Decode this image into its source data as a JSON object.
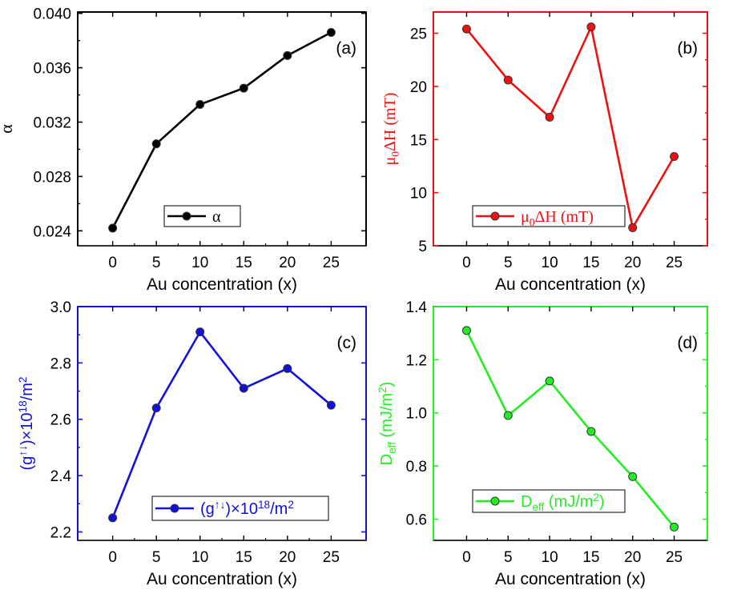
{
  "chart_data": [
    {
      "id": "a",
      "type": "line",
      "panel_label": "(a)",
      "color": "#000000",
      "xlabel": "Au concentration (x)",
      "ylabel": "α",
      "x": [
        0,
        5,
        10,
        15,
        20,
        25
      ],
      "xticks": [
        "0",
        "5",
        "10",
        "15",
        "20",
        "25"
      ],
      "xlim": [
        -4,
        29
      ],
      "ylim": [
        0.0229,
        0.0401
      ],
      "yticks": [
        "0.024",
        "0.028",
        "0.032",
        "0.036",
        "0.040"
      ],
      "ytick_values": [
        0.024,
        0.028,
        0.032,
        0.036,
        0.04
      ],
      "series": [
        {
          "name": "α",
          "values": [
            0.0242,
            0.0304,
            0.0333,
            0.0345,
            0.0369,
            0.0386
          ]
        }
      ],
      "legend": {
        "label": "α",
        "placement": "lower-center"
      }
    },
    {
      "id": "b",
      "type": "line",
      "panel_label": "(b)",
      "color": "#ee1111",
      "xlabel": "Au concentration (x)",
      "ylabel": "μ0ΔH (mT)",
      "x": [
        0,
        5,
        10,
        15,
        20,
        25
      ],
      "xticks": [
        "0",
        "5",
        "10",
        "15",
        "20",
        "25"
      ],
      "xlim": [
        -4,
        29
      ],
      "ylim": [
        5,
        27
      ],
      "yticks": [
        "5",
        "10",
        "15",
        "20",
        "25"
      ],
      "ytick_values": [
        5,
        10,
        15,
        20,
        25
      ],
      "series": [
        {
          "name": "μ0ΔH (mT)",
          "values": [
            25.4,
            20.6,
            17.1,
            25.6,
            6.7,
            13.4
          ]
        }
      ],
      "legend": {
        "label": "μ0ΔH (mT)",
        "placement": "lower-center"
      }
    },
    {
      "id": "c",
      "type": "line",
      "panel_label": "(c)",
      "color": "#1111dd",
      "xlabel": "Au concentration (x)",
      "ylabel": "(g↑↓)×10¹⁸/m²",
      "x": [
        0,
        5,
        10,
        15,
        20,
        25
      ],
      "xticks": [
        "0",
        "5",
        "10",
        "15",
        "20",
        "25"
      ],
      "xlim": [
        -4,
        29
      ],
      "ylim": [
        2.17,
        3.0
      ],
      "yticks": [
        "2.2",
        "2.4",
        "2.6",
        "2.8",
        "3.0"
      ],
      "ytick_values": [
        2.2,
        2.4,
        2.6,
        2.8,
        3.0
      ],
      "series": [
        {
          "name": "(g↑↓)×10¹⁸/m²",
          "values": [
            2.25,
            2.64,
            2.91,
            2.71,
            2.78,
            2.65
          ]
        }
      ],
      "legend": {
        "label": "(g↑↓)×10¹⁸/m²",
        "placement": "lower-center"
      }
    },
    {
      "id": "d",
      "type": "line",
      "panel_label": "(d)",
      "color": "#22ee22",
      "xlabel": "Au concentration (x)",
      "ylabel": "Deff (mJ/m²)",
      "x": [
        0,
        5,
        10,
        15,
        20,
        25
      ],
      "xticks": [
        "0",
        "5",
        "10",
        "15",
        "20",
        "25"
      ],
      "xlim": [
        -4,
        29
      ],
      "ylim": [
        0.52,
        1.4
      ],
      "yticks": [
        "0.6",
        "0.8",
        "1.0",
        "1.2",
        "1.4"
      ],
      "ytick_values": [
        0.6,
        0.8,
        1.0,
        1.2,
        1.4
      ],
      "series": [
        {
          "name": "Deff (mJ/m²)",
          "values": [
            1.31,
            0.99,
            1.12,
            0.93,
            0.76,
            0.57
          ]
        }
      ],
      "legend": {
        "label": "Deff (mJ/m²)",
        "placement": "lower-center"
      }
    }
  ]
}
